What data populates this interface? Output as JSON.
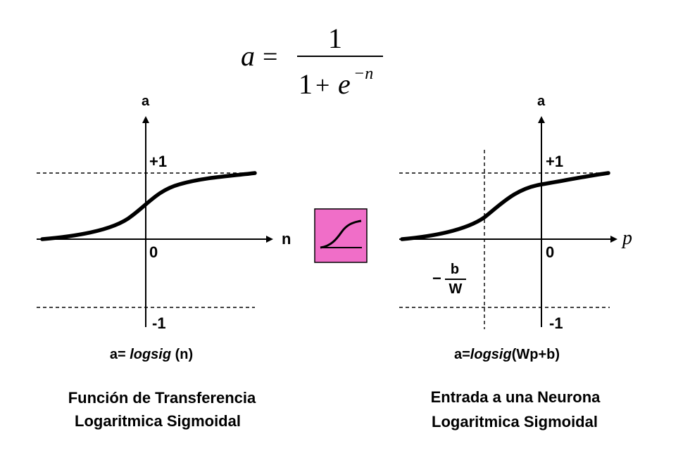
{
  "formula": {
    "lhs": "a",
    "equals": "=",
    "numerator": "1",
    "denominator_one": "1",
    "denominator_plus": "+",
    "denominator_e": "e",
    "exponent": "−n"
  },
  "left_graph": {
    "y_axis_label": "a",
    "x_axis_label": "n",
    "plus_one_label": "+1",
    "zero_label": "0",
    "minus_one_label": "-1",
    "caption_prefix": "a= ",
    "caption_function": "logsig",
    "caption_suffix": " (n)",
    "title_line1": "Función de Transferencia",
    "title_line2": "Logaritmica Sigmoidal"
  },
  "right_graph": {
    "y_axis_label": "a",
    "x_axis_label": "p",
    "plus_one_label": "+1",
    "zero_label": "0",
    "minus_one_label": "-1",
    "offset_minus": "−",
    "offset_numerator": "b",
    "offset_denominator": "W",
    "caption_prefix": "a=",
    "caption_function": "logsig",
    "caption_suffix": "(Wp+b)",
    "title_line1": "Entrada a una Neurona",
    "title_line2": "Logaritmica Sigmoidal"
  },
  "transfer_icon": {
    "icon_name": "logsig-transfer-icon",
    "fill_color": "#f06ec8"
  }
}
